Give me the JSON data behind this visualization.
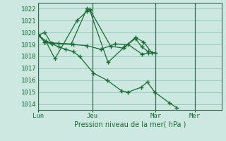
{
  "bg_color": "#cce8e0",
  "grid_color": "#99ccbb",
  "line_color": "#1a6b35",
  "vline_color": "#3a6a50",
  "ylabel": "Pression niveau de la mer( hPa )",
  "ylim": [
    1013.5,
    1022.5
  ],
  "yticks": [
    1014,
    1015,
    1016,
    1017,
    1018,
    1019,
    1020,
    1021,
    1022
  ],
  "xtick_labels": [
    "Lun",
    "Jeu",
    "Mar",
    "Mer"
  ],
  "vline_positions": [
    0.0,
    0.295,
    0.64,
    0.855
  ],
  "xlim": [
    0.0,
    1.0
  ],
  "series": [
    {
      "x": [
        0.0,
        0.04,
        0.09,
        0.21,
        0.265,
        0.28,
        0.38,
        0.47,
        0.53,
        0.565,
        0.6,
        0.64
      ],
      "y": [
        1019.8,
        1019.3,
        1017.8,
        1021.0,
        1021.8,
        1021.9,
        1017.5,
        1018.8,
        1019.5,
        1018.8,
        1018.4,
        1018.3
      ]
    },
    {
      "x": [
        0.0,
        0.035,
        0.07,
        0.18,
        0.265,
        0.28,
        0.395,
        0.465,
        0.53,
        0.575,
        0.62
      ],
      "y": [
        1019.8,
        1020.0,
        1019.1,
        1019.05,
        1022.0,
        1021.95,
        1018.85,
        1018.7,
        1019.6,
        1019.2,
        1018.3
      ]
    },
    {
      "x": [
        0.0,
        0.035,
        0.11,
        0.19,
        0.265,
        0.34,
        0.42,
        0.49,
        0.565,
        0.6
      ],
      "y": [
        1019.8,
        1019.2,
        1019.1,
        1019.0,
        1018.9,
        1018.6,
        1019.05,
        1019.0,
        1018.2,
        1018.3
      ]
    },
    {
      "x": [
        0.0,
        0.035,
        0.075,
        0.11,
        0.15,
        0.19,
        0.225,
        0.3,
        0.375,
        0.455,
        0.49,
        0.56,
        0.595,
        0.635,
        0.715,
        0.755
      ],
      "y": [
        1019.8,
        1019.2,
        1019.05,
        1018.8,
        1018.6,
        1018.4,
        1018.0,
        1016.6,
        1016.0,
        1015.1,
        1015.0,
        1015.4,
        1015.85,
        1015.0,
        1014.1,
        1013.7
      ]
    }
  ]
}
